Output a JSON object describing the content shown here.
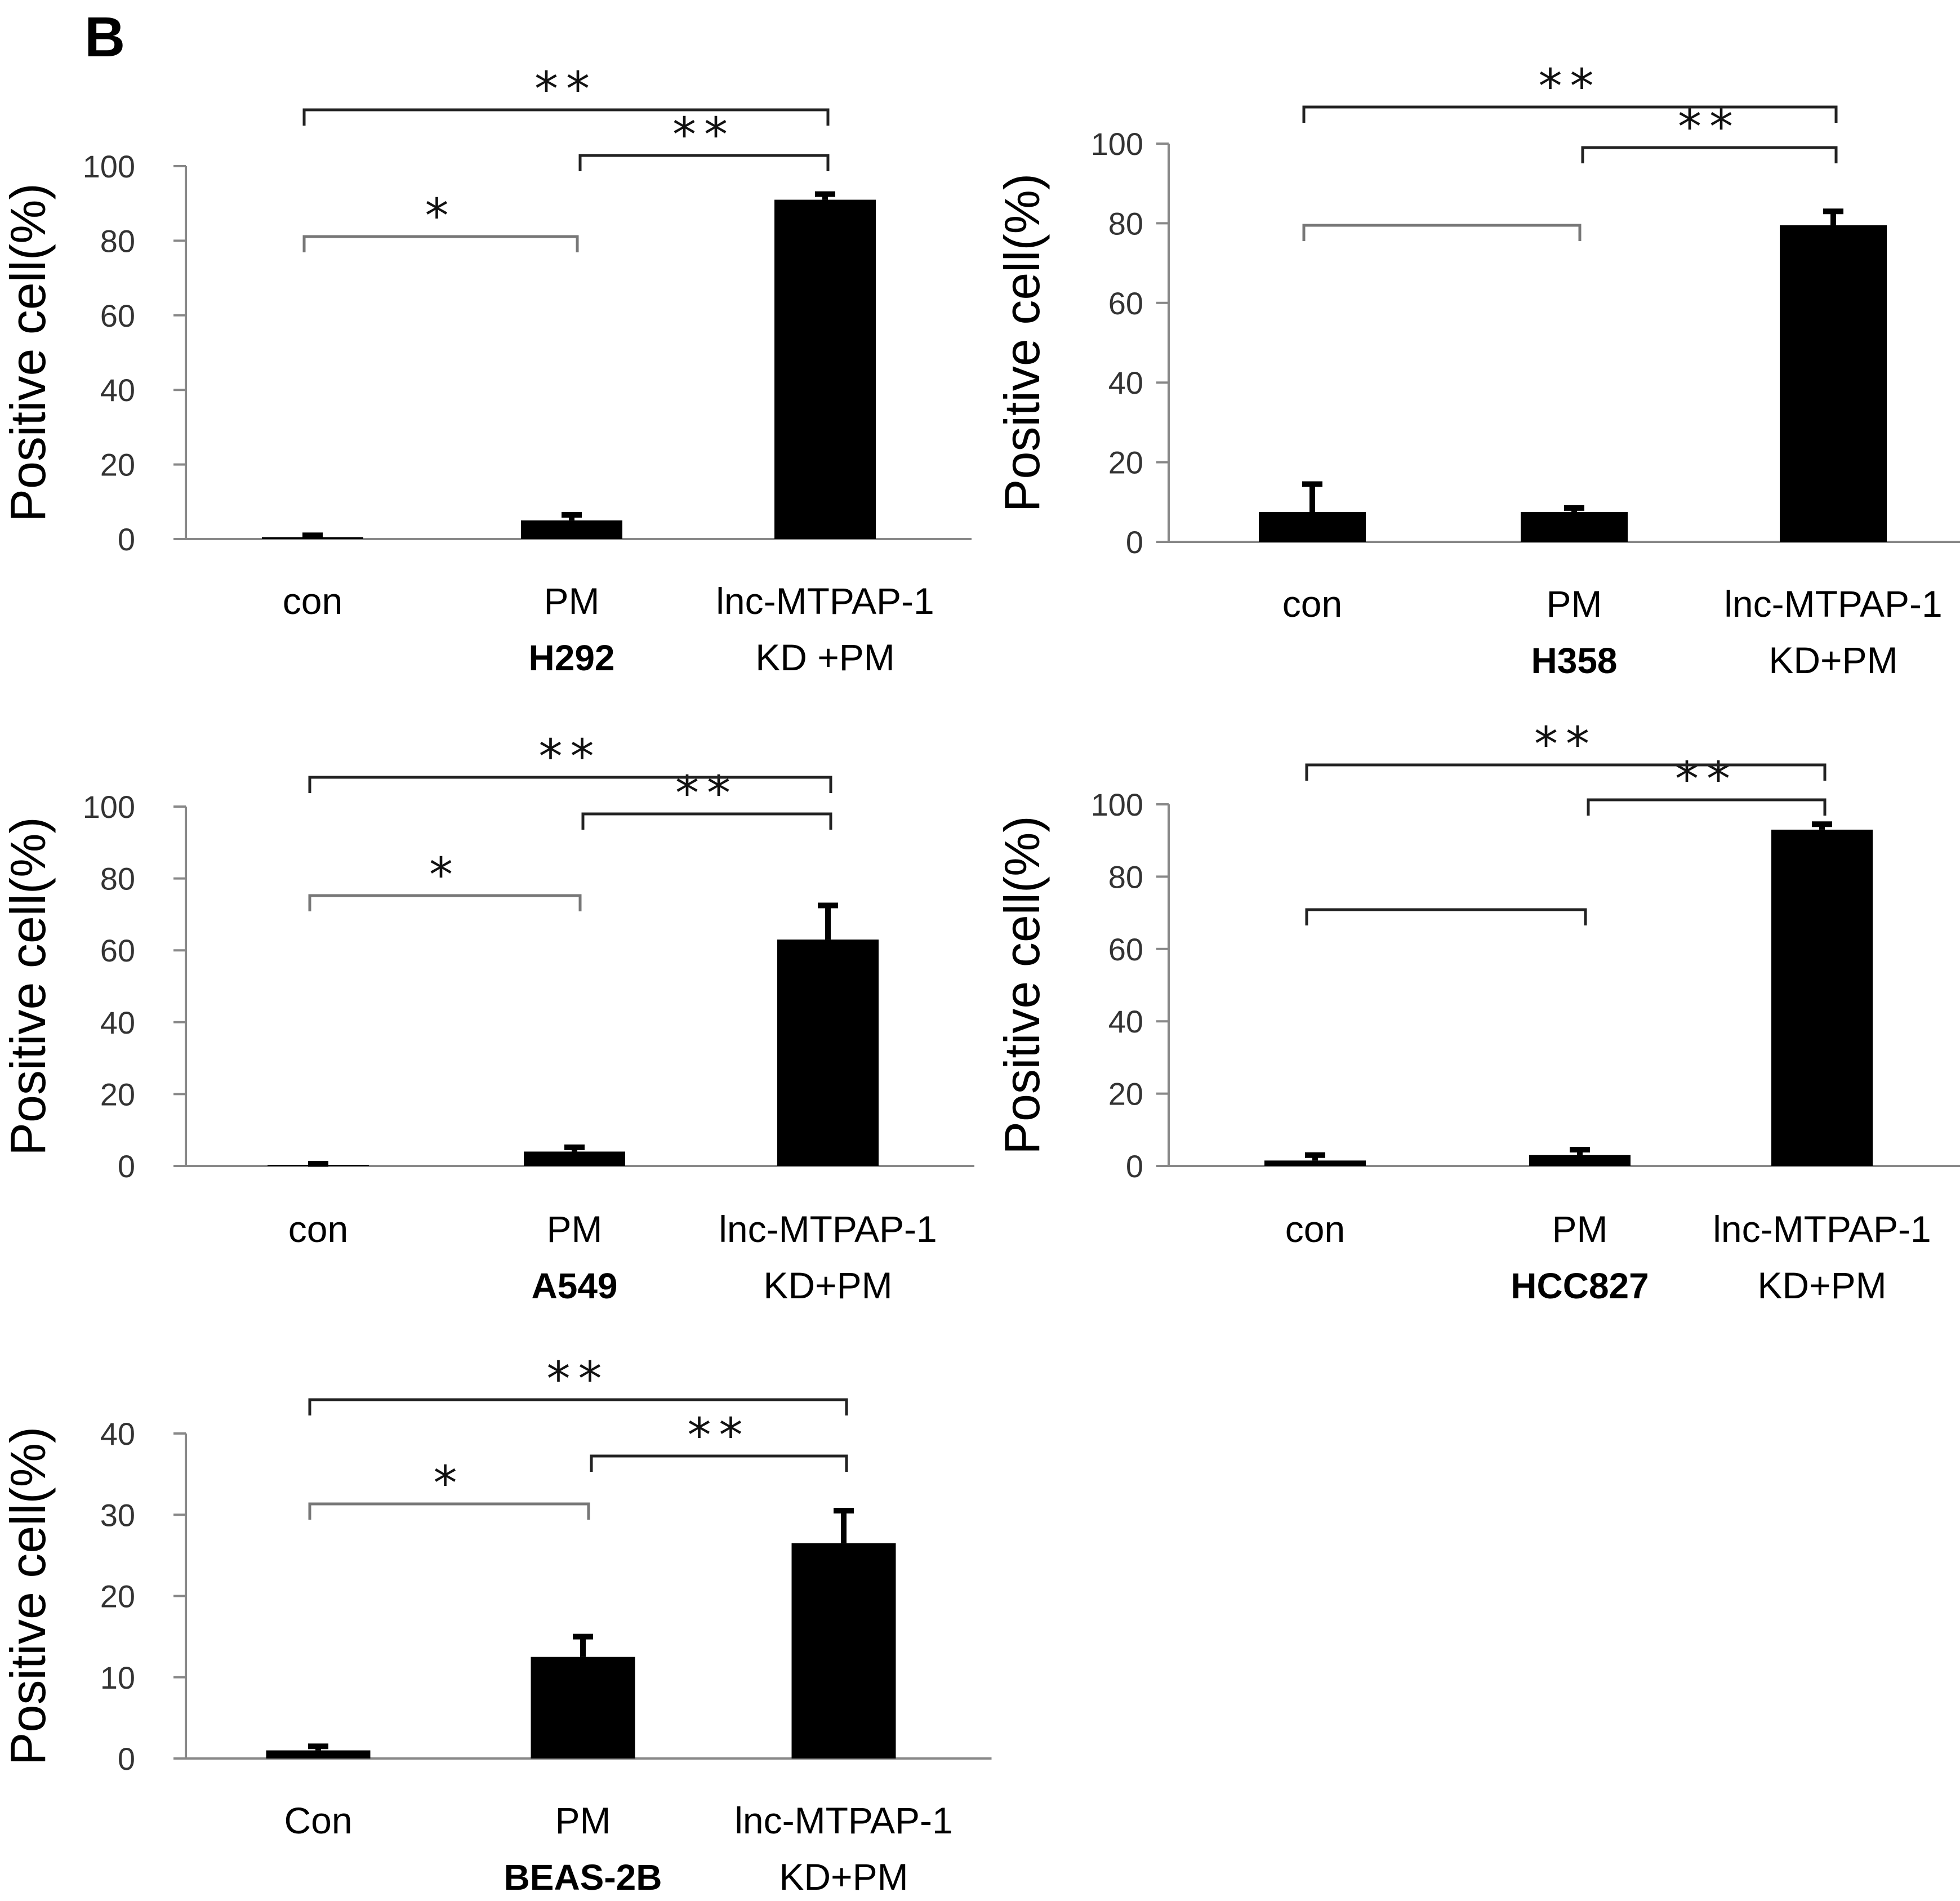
{
  "figure": {
    "panel_label": "B"
  },
  "colors": {
    "bar": "#000000",
    "axis": "#888888",
    "bracket_dark": "#222222",
    "bracket_gray": "#777777",
    "text": "#000000"
  },
  "chart_data": [
    {
      "type": "bar",
      "name": "H292",
      "cell_line": "H292",
      "ylabel": "Positive cell(%)",
      "ylim": [
        0,
        100
      ],
      "yticks": [
        0,
        20,
        40,
        60,
        80,
        100
      ],
      "categories": [
        "con",
        "PM",
        "lnc-MTPAP-1"
      ],
      "category_sublabels": [
        "",
        "",
        "KD +PM"
      ],
      "values": [
        0.5,
        5,
        91
      ],
      "errors": [
        0.5,
        1.5,
        1.5
      ],
      "brackets": [
        {
          "from": 0,
          "to": 1,
          "level": 1,
          "label": "*",
          "tone": "gray"
        },
        {
          "from": 1,
          "to": 2,
          "level": 2,
          "label": "**",
          "tone": "dark"
        },
        {
          "from": 0,
          "to": 2,
          "level": 3,
          "label": "**",
          "tone": "dark"
        }
      ]
    },
    {
      "type": "bar",
      "name": "H358",
      "cell_line": "H358",
      "ylabel": "Positive cell(%)",
      "ylim": [
        0,
        100
      ],
      "yticks": [
        0,
        20,
        40,
        60,
        80,
        100
      ],
      "categories": [
        "con",
        "PM",
        "lnc-MTPAP-1"
      ],
      "category_sublabels": [
        "",
        "",
        "KD+PM"
      ],
      "values": [
        7.5,
        7.5,
        79.5
      ],
      "errors": [
        7,
        1,
        3.5
      ],
      "brackets": [
        {
          "from": 0,
          "to": 1,
          "level": 1,
          "label": "",
          "tone": "gray"
        },
        {
          "from": 1,
          "to": 2,
          "level": 2,
          "label": "**",
          "tone": "dark"
        },
        {
          "from": 0,
          "to": 2,
          "level": 3,
          "label": "**",
          "tone": "dark"
        }
      ]
    },
    {
      "type": "bar",
      "name": "A549",
      "cell_line": "A549",
      "ylabel": "Positive cell(%)",
      "ylim": [
        0,
        100
      ],
      "yticks": [
        0,
        20,
        40,
        60,
        80,
        100
      ],
      "categories": [
        "con",
        "PM",
        "lnc-MTPAP-1"
      ],
      "category_sublabels": [
        "",
        "",
        "KD+PM"
      ],
      "values": [
        0.3,
        4,
        63
      ],
      "errors": [
        0.3,
        1.2,
        9.5
      ],
      "brackets": [
        {
          "from": 0,
          "to": 1,
          "level": 1,
          "label": "*",
          "tone": "gray"
        },
        {
          "from": 1,
          "to": 2,
          "level": 2,
          "label": "**",
          "tone": "dark"
        },
        {
          "from": 0,
          "to": 2,
          "level": 3,
          "label": "**",
          "tone": "dark"
        }
      ]
    },
    {
      "type": "bar",
      "name": "HCC827",
      "cell_line": "HCC827",
      "ylabel": "Positive cell(%)",
      "ylim": [
        0,
        100
      ],
      "yticks": [
        0,
        20,
        40,
        60,
        80,
        100
      ],
      "categories": [
        "con",
        "PM",
        "lnc-MTPAP-1"
      ],
      "category_sublabels": [
        "",
        "",
        "KD+PM"
      ],
      "values": [
        1.5,
        3,
        93
      ],
      "errors": [
        1.5,
        1.5,
        1.5
      ],
      "brackets": [
        {
          "from": 0,
          "to": 1,
          "level": 1,
          "label": "",
          "tone": "dark"
        },
        {
          "from": 1,
          "to": 2,
          "level": 2,
          "label": "**",
          "tone": "dark"
        },
        {
          "from": 0,
          "to": 2,
          "level": 3,
          "label": "**",
          "tone": "dark"
        }
      ]
    },
    {
      "type": "bar",
      "name": "BEAS-2B",
      "cell_line": "BEAS-2B",
      "ylabel": "Positive cell(%)",
      "ylim": [
        0,
        40
      ],
      "yticks": [
        0,
        10,
        20,
        30,
        40
      ],
      "categories": [
        "Con",
        "PM",
        "lnc-MTPAP-1"
      ],
      "category_sublabels": [
        "",
        "",
        "KD+PM"
      ],
      "values": [
        1,
        12.5,
        26.5
      ],
      "errors": [
        0.5,
        2.5,
        4
      ],
      "brackets": [
        {
          "from": 0,
          "to": 1,
          "level": 1,
          "label": "*",
          "tone": "gray"
        },
        {
          "from": 1,
          "to": 2,
          "level": 2,
          "label": "**",
          "tone": "dark"
        },
        {
          "from": 0,
          "to": 2,
          "level": 3,
          "label": "**",
          "tone": "dark"
        }
      ]
    }
  ]
}
